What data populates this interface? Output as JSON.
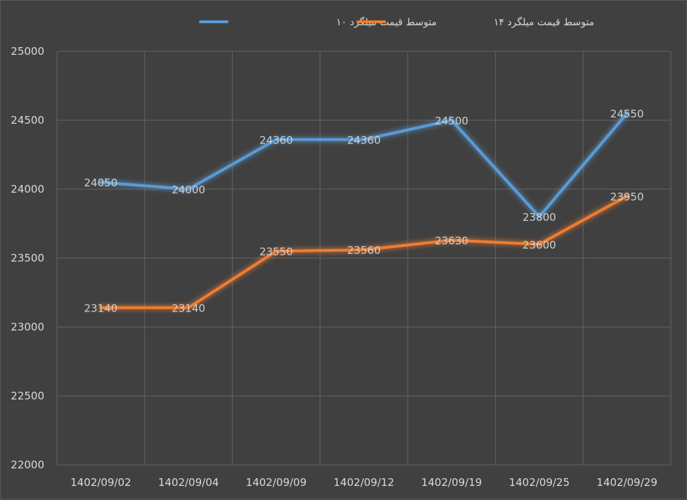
{
  "chart_data": {
    "type": "line",
    "title": "",
    "xlabel": "",
    "ylabel": "",
    "categories": [
      "1402/09/02",
      "1402/09/04",
      "1402/09/09",
      "1402/09/12",
      "1402/09/19",
      "1402/09/25",
      "1402/09/29"
    ],
    "ylim": [
      22000,
      25000
    ],
    "yticks": [
      "22000",
      "22500",
      "23000",
      "23500",
      "24000",
      "24500",
      "25000"
    ],
    "grid": true,
    "legend_position": "top",
    "series": [
      {
        "name": "متوسط قیمت میلگرد ۱۰",
        "color": "#5b9bd5",
        "values": [
          24050,
          24000,
          24360,
          24360,
          24500,
          23800,
          24550
        ],
        "labels": [
          "24050",
          "24000",
          "24360",
          "24360",
          "24500",
          "23800",
          "24550"
        ]
      },
      {
        "name": "متوسط قیمت میلگرد ۱۴",
        "color": "#ed7d31",
        "values": [
          23140,
          23140,
          23550,
          23560,
          23630,
          23600,
          23950
        ],
        "labels": [
          "23140",
          "23140",
          "23550",
          "23560",
          "23630",
          "23600",
          "23950"
        ]
      }
    ]
  }
}
